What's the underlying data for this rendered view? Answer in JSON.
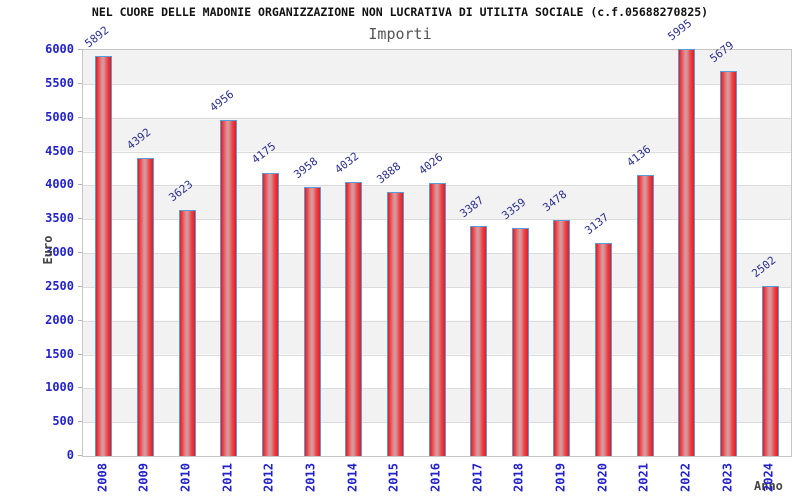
{
  "chart_data": {
    "type": "bar",
    "title": "NEL CUORE DELLE MADONIE ORGANIZZAZIONE NON LUCRATIVA DI UTILITA SOCIALE (c.f.05688270825)",
    "subtitle": "Importi",
    "xlabel": "Anno",
    "ylabel": "Euro",
    "categories": [
      "2008",
      "2009",
      "2010",
      "2011",
      "2012",
      "2013",
      "2014",
      "2015",
      "2016",
      "2017",
      "2018",
      "2019",
      "2020",
      "2021",
      "2022",
      "2023",
      "2024"
    ],
    "values": [
      5892,
      4392,
      3623,
      4956,
      4175,
      3958,
      4032,
      3888,
      4026,
      3387,
      3359,
      3478,
      3137,
      4136,
      5995,
      5679,
      2502
    ],
    "ylim": [
      0,
      6000
    ],
    "ytick_step": 500,
    "grid": "horizontal-bands",
    "legend": "none",
    "colors": {
      "bar_edge": "#e31b23",
      "bar_center": "#d9969a",
      "bar_border": "#5a9bd8",
      "axis_tick_text": "#2222cc",
      "value_label_text": "#2b2f8f",
      "band_fill": "#f2f2f2",
      "gridline": "#dcdcdc",
      "axis_title_text": "#444444",
      "title_text": "#111111",
      "subtitle_text": "#555555"
    }
  }
}
